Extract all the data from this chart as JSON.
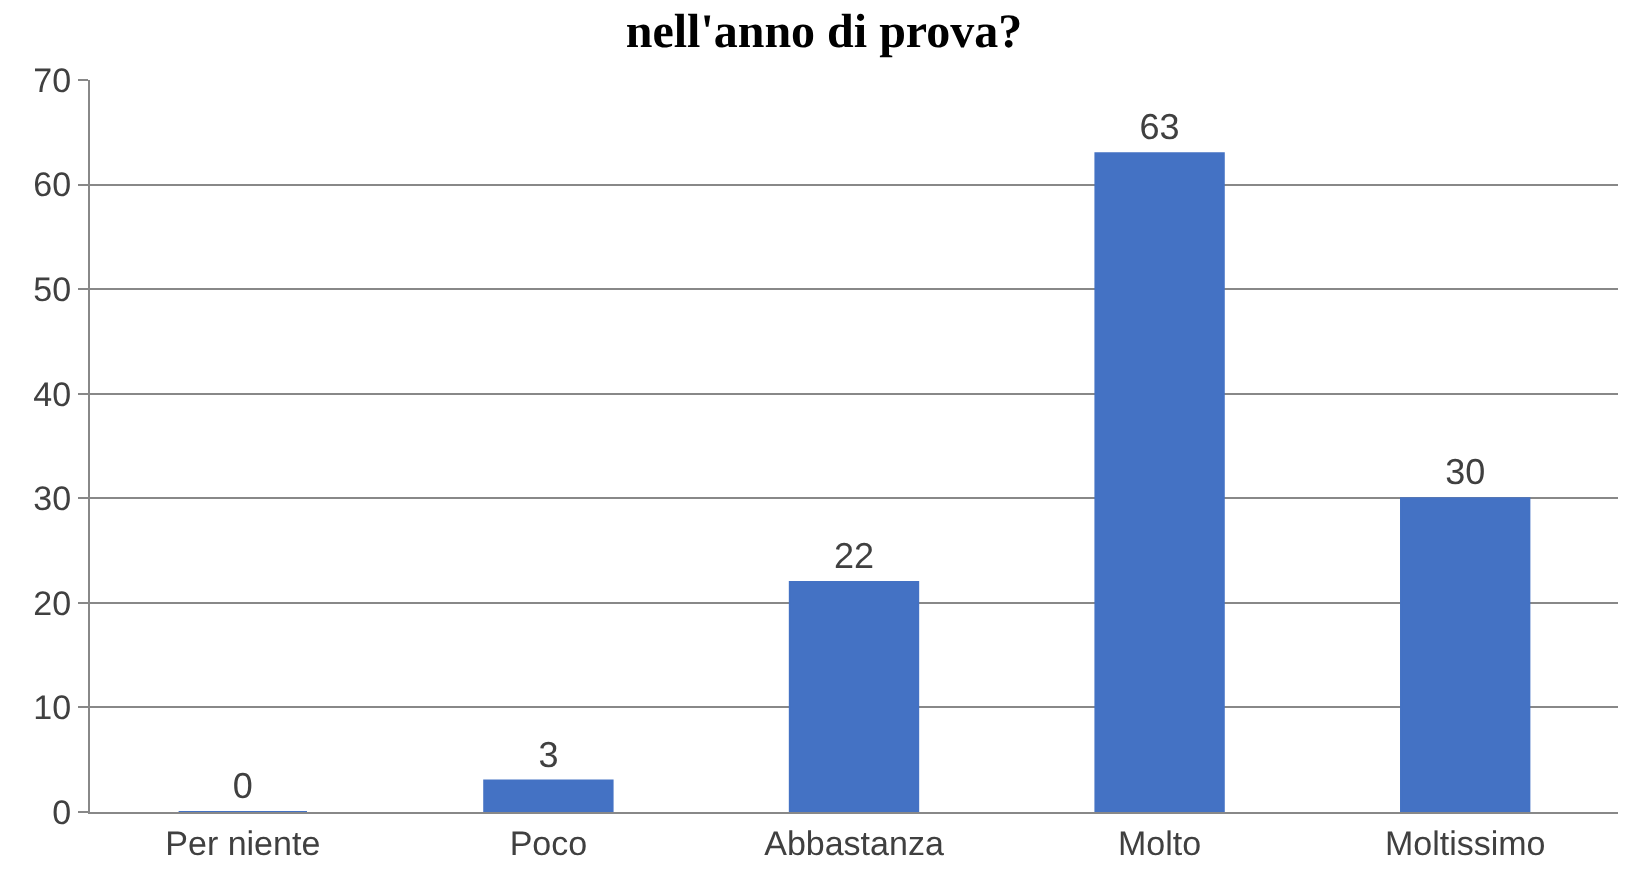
{
  "chart_data": {
    "type": "bar",
    "title": "nell'anno di prova?",
    "categories": [
      "Per niente",
      "Poco",
      "Abbastanza",
      "Molto",
      "Moltissimo"
    ],
    "values": [
      0,
      3,
      22,
      63,
      30
    ],
    "color": "#4472c4",
    "ylim": [
      0,
      70
    ],
    "yticks": [
      0,
      10,
      20,
      30,
      40,
      50,
      60,
      70
    ],
    "grid": "y",
    "data_labels": true,
    "legend": false
  }
}
